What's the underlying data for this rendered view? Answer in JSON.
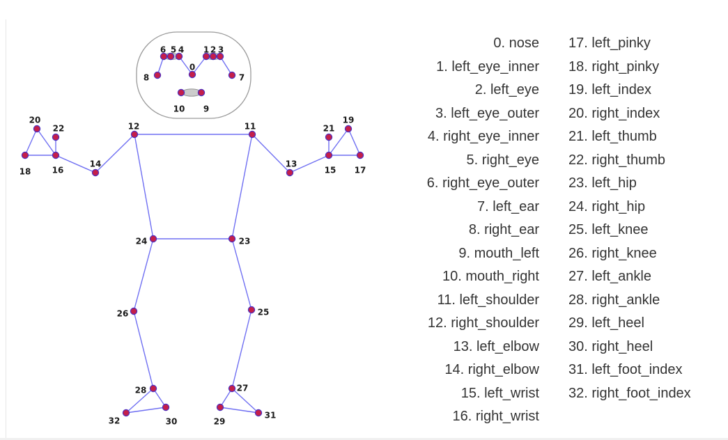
{
  "colors": {
    "line": "#6f6ff2",
    "dot_fill": "#c41f4a",
    "dot_stroke": "#4a2fc2",
    "ellipse_fill": "#cccccc",
    "ellipse_stroke": "#8c8c8c",
    "text": "#333333"
  },
  "keypoints": [
    {
      "id": "0",
      "name": "nose"
    },
    {
      "id": "1",
      "name": "left_eye_inner"
    },
    {
      "id": "2",
      "name": "left_eye"
    },
    {
      "id": "3",
      "name": "left_eye_outer"
    },
    {
      "id": "4",
      "name": "right_eye_inner"
    },
    {
      "id": "5",
      "name": "right_eye"
    },
    {
      "id": "6",
      "name": "right_eye_outer"
    },
    {
      "id": "7",
      "name": "left_ear"
    },
    {
      "id": "8",
      "name": "right_ear"
    },
    {
      "id": "9",
      "name": "mouth_left"
    },
    {
      "id": "10",
      "name": "mouth_right"
    },
    {
      "id": "11",
      "name": "left_shoulder"
    },
    {
      "id": "12",
      "name": "right_shoulder"
    },
    {
      "id": "13",
      "name": "left_elbow"
    },
    {
      "id": "14",
      "name": "right_elbow"
    },
    {
      "id": "15",
      "name": "left_wrist"
    },
    {
      "id": "16",
      "name": "right_wrist"
    },
    {
      "id": "17",
      "name": "left_pinky"
    },
    {
      "id": "18",
      "name": "right_pinky"
    },
    {
      "id": "19",
      "name": "left_index"
    },
    {
      "id": "20",
      "name": "right_index"
    },
    {
      "id": "21",
      "name": "left_thumb"
    },
    {
      "id": "22",
      "name": "right_thumb"
    },
    {
      "id": "23",
      "name": "left_hip"
    },
    {
      "id": "24",
      "name": "right_hip"
    },
    {
      "id": "25",
      "name": "left_knee"
    },
    {
      "id": "26",
      "name": "right_knee"
    },
    {
      "id": "27",
      "name": "left_ankle"
    },
    {
      "id": "28",
      "name": "right_ankle"
    },
    {
      "id": "29",
      "name": "left_heel"
    },
    {
      "id": "30",
      "name": "right_heel"
    },
    {
      "id": "31",
      "name": "left_foot_index"
    },
    {
      "id": "32",
      "name": "right_foot_index"
    }
  ],
  "legend": {
    "left": [
      "0. nose",
      "1. left_eye_inner",
      "2. left_eye",
      "3. left_eye_outer",
      "4. right_eye_inner",
      "5. right_eye",
      "6. right_eye_outer",
      "7. left_ear",
      "8. right_ear",
      "9. mouth_left",
      "10. mouth_right",
      "11. left_shoulder",
      "12. right_shoulder",
      "13. left_elbow",
      "14. right_elbow",
      "15. left_wrist",
      "16. right_wrist"
    ],
    "right": [
      "17. left_pinky",
      "18. right_pinky",
      "19. left_index",
      "20. right_index",
      "21. left_thumb",
      "22. right_thumb",
      "23. left_hip",
      "24. right_hip",
      "25. left_knee",
      "26. right_knee",
      "27. left_ankle",
      "28. right_ankle",
      "29. left_heel",
      "30. right_heel",
      "31. left_foot_index",
      "32. right_foot_index"
    ]
  }
}
